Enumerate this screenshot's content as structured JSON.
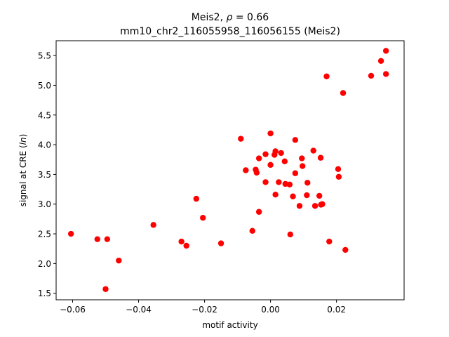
{
  "chart_data": {
    "type": "scatter",
    "title_line1_prefix": "Meis2, ",
    "title_line1_rho": "ρ",
    "title_line1_suffix": " = 0.66",
    "title_line2": "mm10_chr2_116055958_116056155 (Meis2)",
    "xlabel": "motif activity",
    "ylabel_prefix": "signal at CRE (",
    "ylabel_italic": "ln",
    "ylabel_suffix": ")",
    "xlim": [
      -0.065,
      0.0405
    ],
    "ylim": [
      1.39,
      5.75
    ],
    "xticks": [
      {
        "value": -0.06,
        "label": "−0.06"
      },
      {
        "value": -0.04,
        "label": "−0.04"
      },
      {
        "value": -0.02,
        "label": "−0.02"
      },
      {
        "value": 0.0,
        "label": "0.00"
      },
      {
        "value": 0.02,
        "label": "0.02"
      }
    ],
    "yticks": [
      {
        "value": 1.5,
        "label": "1.5"
      },
      {
        "value": 2.0,
        "label": "2.0"
      },
      {
        "value": 2.5,
        "label": "2.5"
      },
      {
        "value": 3.0,
        "label": "3.0"
      },
      {
        "value": 3.5,
        "label": "3.5"
      },
      {
        "value": 4.0,
        "label": "4.0"
      },
      {
        "value": 4.5,
        "label": "4.5"
      },
      {
        "value": 5.0,
        "label": "5.0"
      },
      {
        "value": 5.5,
        "label": "5.5"
      }
    ],
    "grid": false,
    "marker_color": "#ff0000",
    "points": [
      {
        "x": -0.0605,
        "y": 2.5
      },
      {
        "x": -0.0525,
        "y": 2.41
      },
      {
        "x": -0.0495,
        "y": 2.41
      },
      {
        "x": -0.05,
        "y": 1.57
      },
      {
        "x": -0.046,
        "y": 2.05
      },
      {
        "x": -0.0355,
        "y": 2.65
      },
      {
        "x": -0.027,
        "y": 2.37
      },
      {
        "x": -0.0255,
        "y": 2.3
      },
      {
        "x": -0.0225,
        "y": 3.09
      },
      {
        "x": -0.0205,
        "y": 2.77
      },
      {
        "x": -0.015,
        "y": 2.34
      },
      {
        "x": -0.009,
        "y": 4.1
      },
      {
        "x": -0.0075,
        "y": 3.57
      },
      {
        "x": -0.0055,
        "y": 2.55
      },
      {
        "x": -0.0045,
        "y": 3.58
      },
      {
        "x": -0.0042,
        "y": 3.53
      },
      {
        "x": -0.0035,
        "y": 3.77
      },
      {
        "x": -0.0035,
        "y": 2.87
      },
      {
        "x": -0.0015,
        "y": 3.84
      },
      {
        "x": -0.0015,
        "y": 3.37
      },
      {
        "x": 0.0,
        "y": 4.19
      },
      {
        "x": 0.0,
        "y": 3.66
      },
      {
        "x": 0.0012,
        "y": 3.83
      },
      {
        "x": 0.0015,
        "y": 3.89
      },
      {
        "x": 0.0015,
        "y": 3.16
      },
      {
        "x": 0.0025,
        "y": 3.37
      },
      {
        "x": 0.0032,
        "y": 3.86
      },
      {
        "x": 0.0043,
        "y": 3.72
      },
      {
        "x": 0.0045,
        "y": 3.34
      },
      {
        "x": 0.0058,
        "y": 3.33
      },
      {
        "x": 0.006,
        "y": 2.49
      },
      {
        "x": 0.0068,
        "y": 3.13
      },
      {
        "x": 0.0075,
        "y": 3.52
      },
      {
        "x": 0.0075,
        "y": 4.08
      },
      {
        "x": 0.0088,
        "y": 2.97
      },
      {
        "x": 0.0095,
        "y": 3.77
      },
      {
        "x": 0.0097,
        "y": 3.64
      },
      {
        "x": 0.011,
        "y": 3.15
      },
      {
        "x": 0.0112,
        "y": 3.36
      },
      {
        "x": 0.013,
        "y": 3.9
      },
      {
        "x": 0.0135,
        "y": 2.97
      },
      {
        "x": 0.0148,
        "y": 3.14
      },
      {
        "x": 0.0152,
        "y": 3.78
      },
      {
        "x": 0.0153,
        "y": 2.99
      },
      {
        "x": 0.0157,
        "y": 3.0
      },
      {
        "x": 0.017,
        "y": 5.15
      },
      {
        "x": 0.0178,
        "y": 2.37
      },
      {
        "x": 0.0205,
        "y": 3.59
      },
      {
        "x": 0.0207,
        "y": 3.46
      },
      {
        "x": 0.022,
        "y": 4.87
      },
      {
        "x": 0.0227,
        "y": 2.23
      },
      {
        "x": 0.0305,
        "y": 5.16
      },
      {
        "x": 0.0335,
        "y": 5.41
      },
      {
        "x": 0.035,
        "y": 5.58
      },
      {
        "x": 0.035,
        "y": 5.19
      }
    ]
  }
}
